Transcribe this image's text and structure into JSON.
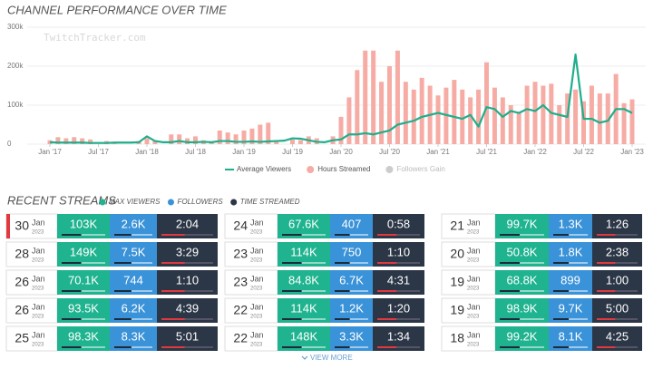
{
  "chart_data": {
    "type": "combo",
    "title": "CHANNEL PERFORMANCE OVER TIME",
    "watermark": "TwitchTracker.com",
    "categories": [
      "Jan '17",
      null,
      null,
      null,
      null,
      null,
      "Jul '17",
      null,
      null,
      null,
      null,
      null,
      "Jan '18",
      null,
      null,
      null,
      null,
      null,
      "Jul '18",
      null,
      null,
      null,
      null,
      null,
      "Jan '19",
      null,
      null,
      null,
      null,
      null,
      "Jul '19",
      null,
      null,
      null,
      null,
      null,
      "Jan '20",
      null,
      null,
      null,
      null,
      null,
      "Jul '20",
      null,
      null,
      null,
      null,
      null,
      "Jan '21",
      null,
      null,
      null,
      null,
      null,
      "Jul '21",
      null,
      null,
      null,
      null,
      null,
      "Jan '22",
      null,
      null,
      null,
      null,
      null,
      "Jul '22",
      null,
      null,
      null,
      null,
      null,
      "Jan '23"
    ],
    "series": [
      {
        "name": "Average Viewers",
        "mark": "line",
        "color": "#1fae8c",
        "values": [
          5000,
          4000,
          4000,
          4000,
          4000,
          3000,
          3000,
          3000,
          4000,
          4000,
          4000,
          5000,
          20000,
          8000,
          5000,
          5000,
          8000,
          5000,
          5000,
          6000,
          5000,
          8000,
          8000,
          6000,
          6000,
          7000,
          6000,
          7000,
          8000,
          9000,
          15000,
          14000,
          10000,
          6000,
          5000,
          10000,
          12000,
          25000,
          25000,
          28000,
          25000,
          30000,
          35000,
          50000,
          55000,
          60000,
          70000,
          75000,
          80000,
          75000,
          70000,
          65000,
          75000,
          45000,
          95000,
          90000,
          70000,
          85000,
          80000,
          90000,
          85000,
          100000,
          80000,
          75000,
          70000,
          230000,
          65000,
          65000,
          55000,
          60000,
          90000,
          90000,
          80000
        ]
      },
      {
        "name": "Hours Streamed",
        "mark": "bar",
        "color": "#f6aca4",
        "values": [
          10000,
          18000,
          15000,
          18000,
          15000,
          12000,
          0,
          8000,
          5000,
          0,
          0,
          8000,
          15000,
          10000,
          0,
          25000,
          25000,
          15000,
          20000,
          10000,
          5000,
          35000,
          30000,
          25000,
          35000,
          40000,
          50000,
          55000,
          10000,
          0,
          12000,
          10000,
          20000,
          15000,
          0,
          20000,
          70000,
          120000,
          190000,
          240000,
          240000,
          160000,
          200000,
          240000,
          160000,
          140000,
          170000,
          150000,
          125000,
          145000,
          165000,
          140000,
          120000,
          140000,
          210000,
          145000,
          120000,
          100000,
          80000,
          150000,
          160000,
          150000,
          155000,
          100000,
          130000,
          140000,
          110000,
          150000,
          130000,
          130000,
          180000,
          105000,
          115000
        ]
      },
      {
        "name": "Followers Gain",
        "mark": "hidden",
        "color": "#cccccc"
      }
    ],
    "ylim": [
      0,
      300000
    ],
    "yticks": [
      0,
      {
        "value": 100000,
        "label": "100k"
      },
      {
        "value": 200000,
        "label": "200k"
      },
      {
        "value": 300000,
        "label": "300k"
      }
    ],
    "grid": true
  },
  "recent_streams": {
    "title": "RECENT STREAMS",
    "legend": [
      {
        "label": "MAX VIEWERS",
        "color": "#1fb38f"
      },
      {
        "label": "FOLLOWERS",
        "color": "#3a92d8"
      },
      {
        "label": "TIME STREAMED",
        "color": "#2b3646"
      }
    ],
    "rows": [
      {
        "day": "30",
        "month": "Jan",
        "year": "2023",
        "max_viewers": "103K",
        "followers": "2.6K",
        "time": "2:04"
      },
      {
        "day": "28",
        "month": "Jan",
        "year": "2023",
        "max_viewers": "149K",
        "followers": "7.5K",
        "time": "3:29"
      },
      {
        "day": "26",
        "month": "Jan",
        "year": "2023",
        "max_viewers": "70.1K",
        "followers": "744",
        "time": "1:10"
      },
      {
        "day": "26",
        "month": "Jan",
        "year": "2023",
        "max_viewers": "93.5K",
        "followers": "6.2K",
        "time": "4:39"
      },
      {
        "day": "25",
        "month": "Jan",
        "year": "2023",
        "max_viewers": "98.3K",
        "followers": "8.3K",
        "time": "5:01"
      },
      {
        "day": "24",
        "month": "Jan",
        "year": "2023",
        "max_viewers": "67.6K",
        "followers": "407",
        "time": "0:58"
      },
      {
        "day": "23",
        "month": "Jan",
        "year": "2023",
        "max_viewers": "114K",
        "followers": "750",
        "time": "1:10"
      },
      {
        "day": "23",
        "month": "Jan",
        "year": "2023",
        "max_viewers": "84.8K",
        "followers": "6.7K",
        "time": "4:31"
      },
      {
        "day": "22",
        "month": "Jan",
        "year": "2023",
        "max_viewers": "114K",
        "followers": "1.2K",
        "time": "1:20"
      },
      {
        "day": "22",
        "month": "Jan",
        "year": "2023",
        "max_viewers": "148K",
        "followers": "3.3K",
        "time": "1:34"
      },
      {
        "day": "21",
        "month": "Jan",
        "year": "2023",
        "max_viewers": "99.7K",
        "followers": "1.3K",
        "time": "1:26"
      },
      {
        "day": "20",
        "month": "Jan",
        "year": "2023",
        "max_viewers": "50.8K",
        "followers": "1.8K",
        "time": "2:38"
      },
      {
        "day": "19",
        "month": "Jan",
        "year": "2023",
        "max_viewers": "68.8K",
        "followers": "899",
        "time": "1:00"
      },
      {
        "day": "19",
        "month": "Jan",
        "year": "2023",
        "max_viewers": "98.9K",
        "followers": "9.7K",
        "time": "5:00"
      },
      {
        "day": "18",
        "month": "Jan",
        "year": "2023",
        "max_viewers": "99.2K",
        "followers": "8.1K",
        "time": "4:25"
      }
    ],
    "view_more": "VIEW MORE"
  }
}
